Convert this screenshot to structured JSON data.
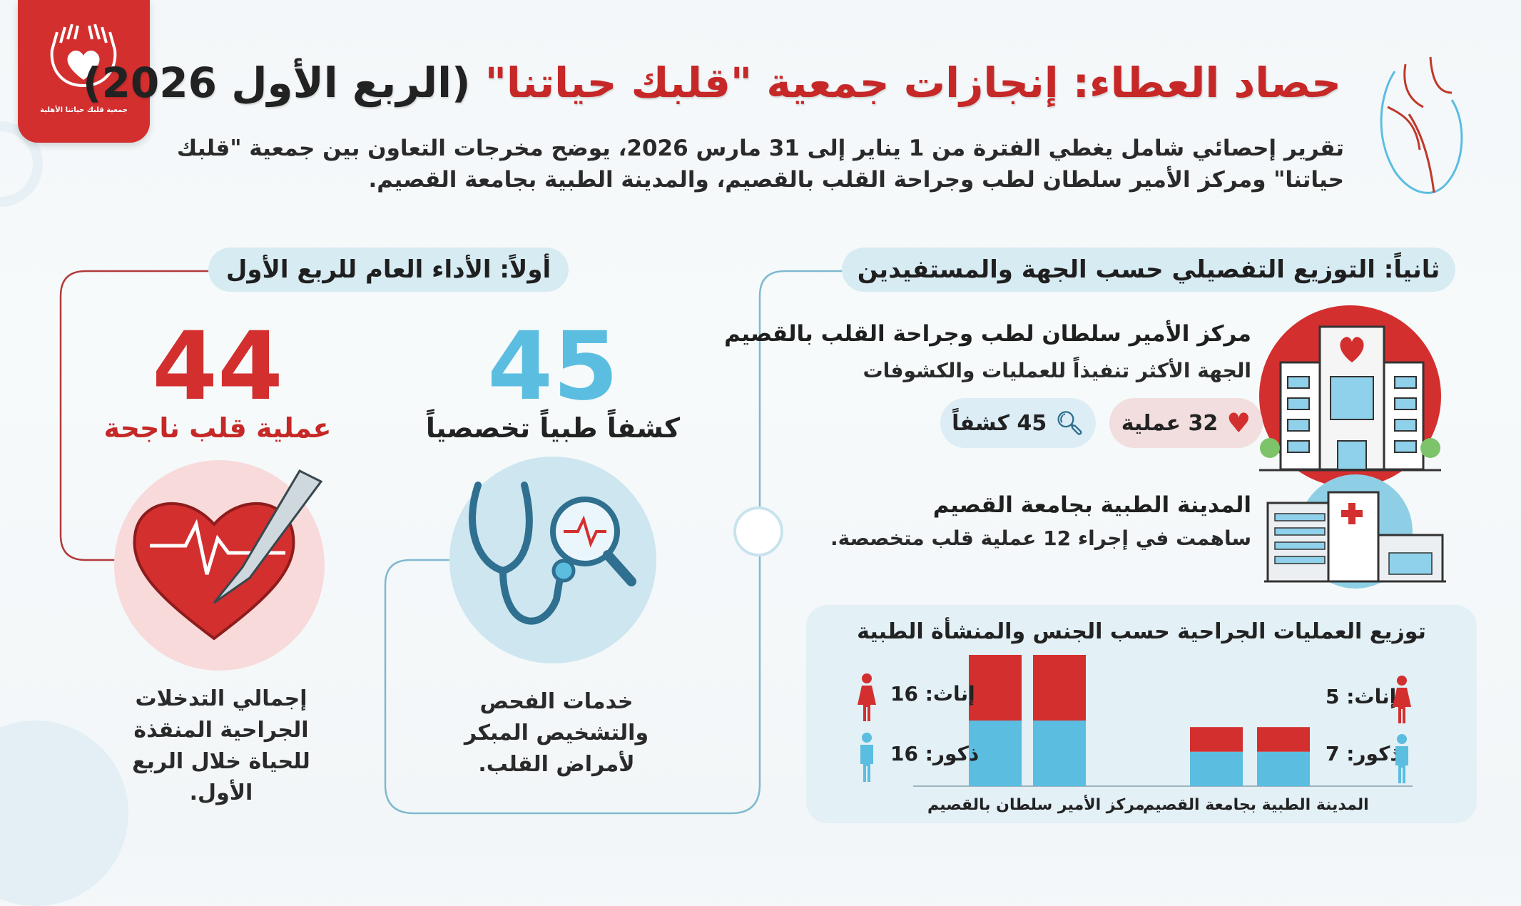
{
  "logo": {
    "text": "جمعية قلبك حياتنا الأهلية",
    "icon": "hands-heart-icon"
  },
  "header": {
    "title_part1": "حصاد العطاء: إنجازات جمعية \"قلبك حياتنا\"",
    "title_part2": "(الربع الأول 2026)",
    "subtitle": "تقرير إحصائي شامل يغطي الفترة من 1 يناير إلى 31 مارس 2026، يوضح مخرجات التعاون بين جمعية \"قلبك حياتنا\" ومركز الأمير سلطان لطب وجراحة القلب بالقصيم، والمدينة الطبية بجامعة القصيم."
  },
  "section1": {
    "heading": "أولاً: الأداء العام للربع الأول",
    "stats": [
      {
        "value": "44",
        "label": "عملية قلب ناجحة",
        "description": "إجمالي التدخلات الجراحية المنقذة للحياة خلال الربع الأول.",
        "color": "#d32f2f",
        "icon": "heart-scalpel-icon"
      },
      {
        "value": "45",
        "label": "كشفاً طبياً تخصصياً",
        "description": "خدمات الفحص والتشخيص المبكر لأمراض القلب.",
        "color": "#5bbde0",
        "icon": "stethoscope-icon"
      }
    ]
  },
  "section2": {
    "heading": "ثانياً: التوزيع التفصيلي حسب الجهة والمستفيدين",
    "center1": {
      "name": "مركز الأمير سلطان لطب وجراحة القلب بالقصيم",
      "note": "الجهة الأكثر تنفيذاً للعمليات والكشوفات",
      "operations": "32 عملية",
      "exams": "45 كشفاً"
    },
    "center2": {
      "name": "المدينة الطبية بجامعة القصيم",
      "note": "ساهمت في إجراء 12 عملية قلب متخصصة."
    }
  },
  "chart_data": {
    "type": "bar",
    "stacked": true,
    "title": "توزيع العمليات الجراحية حسب الجنس والمنشأة الطبية",
    "categories": [
      "مركز الأمير سلطان بالقصيم",
      "المدينة الطبية بجامعة القصيم"
    ],
    "series": [
      {
        "name": "ذكور",
        "values": [
          16,
          7
        ],
        "color": "#5bbde0"
      },
      {
        "name": "إناث",
        "values": [
          16,
          5
        ],
        "color": "#d32f2f"
      }
    ],
    "labels": {
      "female1": "إناث: 16",
      "male1": "ذكور: 16",
      "female2": "إناث: 5",
      "male2": "ذكور: 7"
    }
  }
}
